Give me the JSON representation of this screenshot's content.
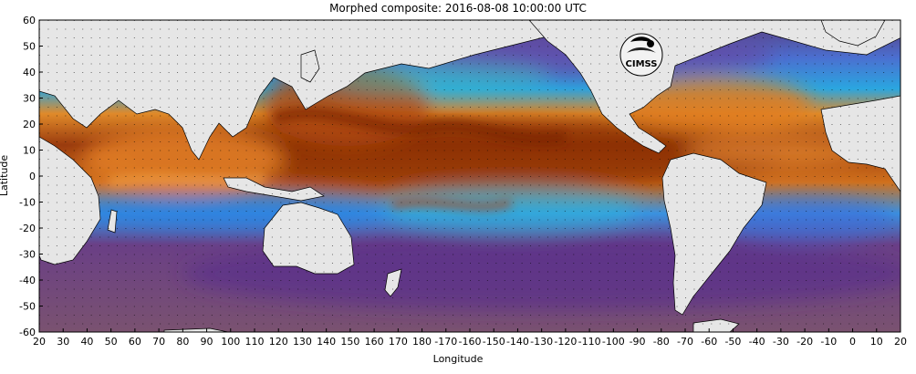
{
  "title": "Morphed composite: 2016-08-08 10:00:00 UTC",
  "axes": {
    "xlabel": "Longitude",
    "ylabel": "Latitude",
    "x_ticks": [
      "20",
      "30",
      "40",
      "50",
      "60",
      "70",
      "80",
      "90",
      "100",
      "110",
      "120",
      "130",
      "140",
      "150",
      "160",
      "170",
      "180",
      "-170",
      "-160",
      "-150",
      "-140",
      "-130",
      "-120",
      "-110",
      "-100",
      "-90",
      "-80",
      "-70",
      "-60",
      "-50",
      "-40",
      "-30",
      "-20",
      "-10",
      "0",
      "10",
      "20"
    ],
    "y_ticks": [
      "60",
      "50",
      "40",
      "30",
      "20",
      "10",
      "0",
      "-10",
      "-20",
      "-30",
      "-40",
      "-50",
      "-60"
    ]
  },
  "logo": {
    "text": "CIMSS"
  },
  "colors": {
    "land": "#e6e6e6",
    "dry": "#6a3f86",
    "moist_low": "#3b7be0",
    "moist_mid": "#62d8c8",
    "moist_high": "#e48a2a",
    "wettest": "#8a2c06"
  }
}
